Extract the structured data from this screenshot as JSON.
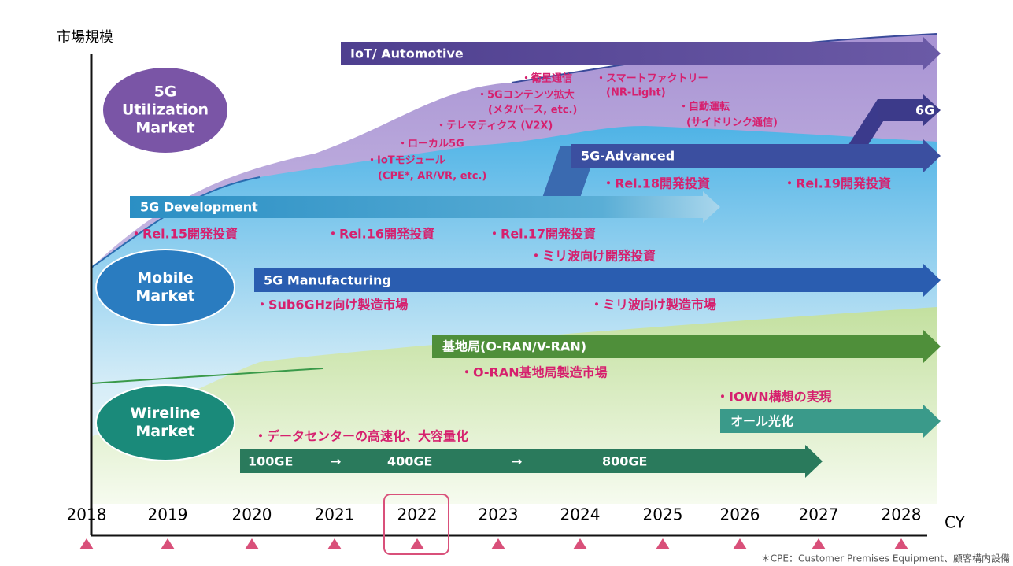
{
  "y_axis_label": "市場規模",
  "x_axis_label": "CY",
  "years": [
    "2018",
    "2019",
    "2020",
    "2021",
    "2022",
    "2023",
    "2024",
    "2025",
    "2026",
    "2027",
    "2028"
  ],
  "markets": [
    {
      "lines": [
        "5G",
        "Utilization",
        "Market"
      ]
    },
    {
      "lines": [
        "Mobile",
        "Market"
      ]
    },
    {
      "lines": [
        "Wireline",
        "Market"
      ]
    }
  ],
  "arrows": [
    {
      "labels": [
        "IoT/ Automotive"
      ]
    },
    {
      "labels": [
        "6G"
      ]
    },
    {
      "labels": [
        "5G-Advanced"
      ]
    },
    {
      "labels": [
        "5G Development"
      ]
    },
    {
      "labels": [
        "5G Manufacturing"
      ]
    },
    {
      "labels": [
        "基地局(O-RAN/V-RAN)"
      ]
    },
    {
      "labels": [
        "オール光化"
      ]
    },
    {
      "labels": [
        "100GE",
        "→",
        "400GE",
        "→",
        "800GE"
      ]
    }
  ],
  "annotations": [
    "・衛星通信",
    "・スマートファクトリー",
    "(NR-Light)",
    "・5Gコンテンツ拡大",
    "(メタバース, etc.)",
    "・自動運転",
    "(サイドリンク通信)",
    "・テレマティクス (V2X)",
    "・ローカル5G",
    "・IoTモジュール",
    "(CPE*, AR/VR, etc.)",
    "・Rel.18開発投資",
    "・Rel.19開発投資",
    "・Rel.15開発投資",
    "・Rel.16開発投資",
    "・Rel.17開発投資",
    "・ミリ波向け開発投資",
    "・Sub6GHz向け製造市場",
    "・ミリ波向け製造市場",
    "・O-RAN基地局製造市場",
    "・IOWN構想の実現",
    "・データセンターの高速化、大容量化"
  ],
  "footnote": "＊CPE：Customer Premises Equipment、顧客構内設備"
}
